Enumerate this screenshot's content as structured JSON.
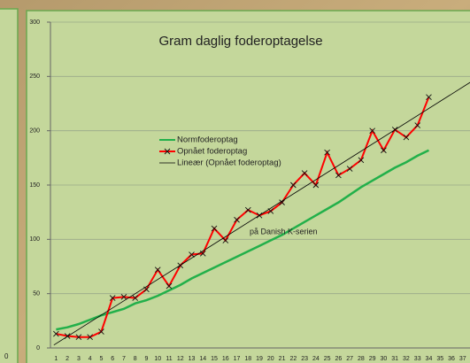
{
  "partial_chart_axis_label": "0",
  "chart_data": {
    "type": "line",
    "title": "Gram daglig foderoptagelse",
    "annotation": "på Danish K-serien",
    "categories": [
      1,
      2,
      3,
      4,
      5,
      6,
      7,
      8,
      9,
      10,
      11,
      12,
      13,
      14,
      15,
      16,
      17,
      18,
      19,
      20,
      21,
      22,
      23,
      24,
      25,
      26,
      27,
      28,
      29,
      30,
      31,
      32,
      33,
      34,
      35,
      36,
      37
    ],
    "series": [
      {
        "name": "Normfoderoptag",
        "color": "#22b04a",
        "values": [
          17,
          19,
          22,
          26,
          30,
          33,
          36,
          41,
          44,
          48,
          53,
          58,
          64,
          69,
          74,
          79,
          84,
          89,
          94,
          99,
          104,
          110,
          116,
          122,
          128,
          134,
          141,
          148,
          154,
          160,
          166,
          171,
          177,
          182,
          null,
          null,
          null
        ]
      },
      {
        "name": "Opnået foderoptag",
        "color": "#ff0000",
        "marker": "x",
        "values": [
          13,
          11,
          10,
          10,
          15,
          46,
          47,
          46,
          54,
          72,
          57,
          76,
          86,
          87,
          110,
          99,
          118,
          127,
          122,
          126,
          134,
          150,
          161,
          150,
          180,
          159,
          165,
          173,
          200,
          182,
          201,
          194,
          205,
          231,
          null,
          null,
          null
        ]
      }
    ],
    "trendline": {
      "name": "Lineær (Opnået foderoptag)",
      "color": "#000000"
    },
    "ylim": [
      0,
      300
    ],
    "yticks": [
      0,
      50,
      100,
      150,
      200,
      250,
      300
    ],
    "grid": true
  }
}
